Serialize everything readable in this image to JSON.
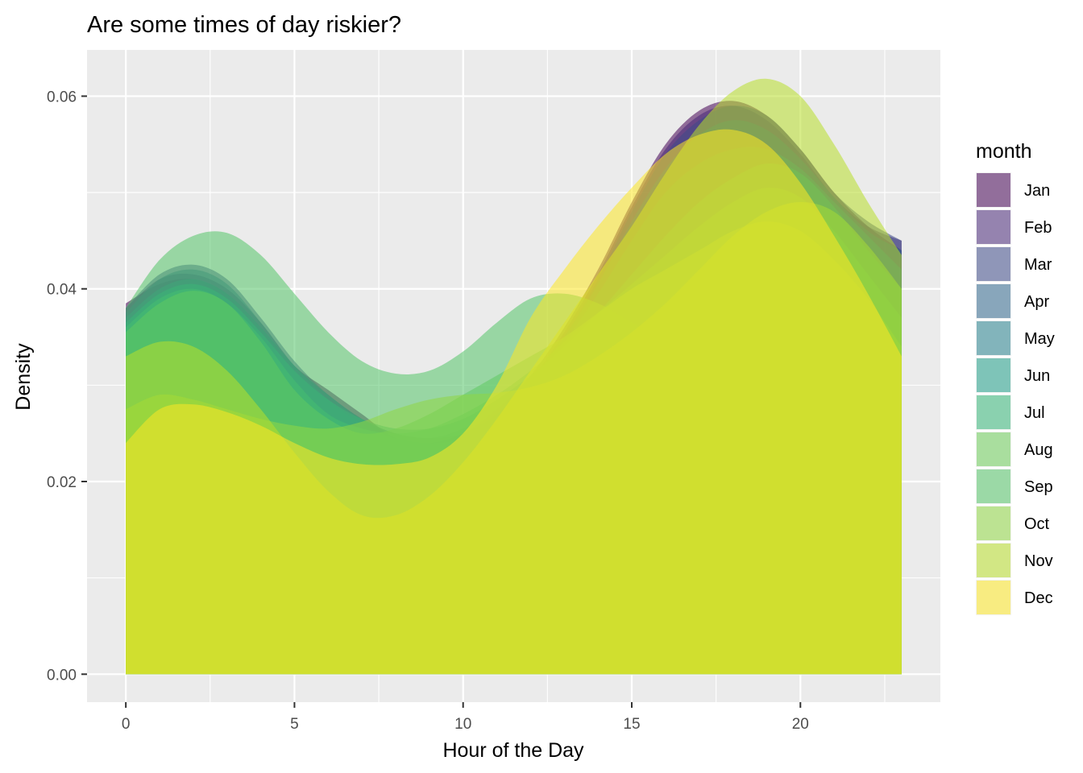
{
  "chart_data": {
    "type": "area",
    "title": "Are some times of day riskier?",
    "xlabel": "Hour of the Day",
    "ylabel": "Density",
    "xlim": [
      -1.15,
      24.15
    ],
    "ylim": [
      -0.0029,
      0.0648
    ],
    "x_ticks": [
      0,
      5,
      10,
      15,
      20
    ],
    "y_ticks": [
      0.0,
      0.02,
      0.04,
      0.06
    ],
    "x_tick_labels": [
      "0",
      "5",
      "10",
      "15",
      "20"
    ],
    "y_tick_labels": [
      "0.00",
      "0.02",
      "0.04",
      "0.06"
    ],
    "grid": true,
    "legend_title": "month",
    "legend_position": "right",
    "x": [
      0,
      1,
      2,
      3,
      4,
      5,
      6,
      7,
      8,
      9,
      10,
      11,
      12,
      13,
      14,
      15,
      16,
      17,
      18,
      19,
      20,
      21,
      22,
      23
    ],
    "series": [
      {
        "name": "Jan",
        "color": "#440154",
        "values": [
          0.0385,
          0.0405,
          0.041,
          0.0395,
          0.036,
          0.032,
          0.0295,
          0.027,
          0.0245,
          0.024,
          0.025,
          0.0275,
          0.031,
          0.036,
          0.042,
          0.049,
          0.055,
          0.0585,
          0.0595,
          0.058,
          0.0545,
          0.05,
          0.0465,
          0.044
        ]
      },
      {
        "name": "Feb",
        "color": "#482878",
        "values": [
          0.038,
          0.041,
          0.0415,
          0.04,
          0.0365,
          0.032,
          0.029,
          0.0265,
          0.025,
          0.0245,
          0.025,
          0.027,
          0.0305,
          0.0355,
          0.0415,
          0.0485,
          0.0545,
          0.058,
          0.059,
          0.0575,
          0.054,
          0.0495,
          0.0465,
          0.045
        ]
      },
      {
        "name": "Mar",
        "color": "#3E4A89",
        "values": [
          0.038,
          0.0415,
          0.0425,
          0.041,
          0.037,
          0.0325,
          0.029,
          0.0265,
          0.0245,
          0.024,
          0.0245,
          0.0265,
          0.03,
          0.035,
          0.041,
          0.048,
          0.054,
          0.0575,
          0.059,
          0.058,
          0.0545,
          0.05,
          0.047,
          0.045
        ]
      },
      {
        "name": "Apr",
        "color": "#31688E",
        "values": [
          0.0375,
          0.041,
          0.042,
          0.0405,
          0.0365,
          0.032,
          0.0285,
          0.026,
          0.0245,
          0.024,
          0.025,
          0.027,
          0.0305,
          0.035,
          0.0405,
          0.047,
          0.0525,
          0.056,
          0.0575,
          0.0565,
          0.0535,
          0.0495,
          0.046,
          0.044
        ]
      },
      {
        "name": "May",
        "color": "#26828E",
        "values": [
          0.037,
          0.04,
          0.041,
          0.0395,
          0.036,
          0.032,
          0.029,
          0.0265,
          0.025,
          0.0245,
          0.0255,
          0.0275,
          0.0305,
          0.0345,
          0.0395,
          0.045,
          0.05,
          0.053,
          0.0545,
          0.0545,
          0.0525,
          0.049,
          0.0455,
          0.042
        ]
      },
      {
        "name": "Jun",
        "color": "#1F9E89",
        "values": [
          0.0365,
          0.0395,
          0.0405,
          0.039,
          0.0355,
          0.0315,
          0.0285,
          0.0265,
          0.0255,
          0.0255,
          0.0265,
          0.0285,
          0.031,
          0.034,
          0.0375,
          0.0415,
          0.0455,
          0.049,
          0.0515,
          0.053,
          0.052,
          0.0485,
          0.044,
          0.04
        ]
      },
      {
        "name": "Jul",
        "color": "#35B779",
        "values": [
          0.036,
          0.039,
          0.04,
          0.0385,
          0.035,
          0.0305,
          0.027,
          0.0255,
          0.025,
          0.0255,
          0.027,
          0.029,
          0.0315,
          0.0345,
          0.0375,
          0.0405,
          0.0435,
          0.0465,
          0.049,
          0.0505,
          0.0495,
          0.046,
          0.0415,
          0.037
        ]
      },
      {
        "name": "Aug",
        "color": "#6DCD59",
        "values": [
          0.0355,
          0.0385,
          0.0398,
          0.0385,
          0.0345,
          0.0295,
          0.0265,
          0.025,
          0.0255,
          0.027,
          0.029,
          0.031,
          0.033,
          0.035,
          0.0375,
          0.04,
          0.042,
          0.044,
          0.046,
          0.047,
          0.046,
          0.043,
          0.039,
          0.034
        ]
      },
      {
        "name": "Sep",
        "color": "#54C568",
        "values": [
          0.038,
          0.043,
          0.0455,
          0.0458,
          0.0435,
          0.0395,
          0.0355,
          0.0325,
          0.0312,
          0.0315,
          0.0335,
          0.0365,
          0.039,
          0.0395,
          0.0385,
          0.0365,
          0.0345,
          0.033,
          0.0325,
          0.0325,
          0.032,
          0.0305,
          0.028,
          0.025
        ]
      },
      {
        "name": "Oct",
        "color": "#8FD744",
        "values": [
          0.0275,
          0.029,
          0.0285,
          0.0275,
          0.0265,
          0.0258,
          0.0255,
          0.0262,
          0.0275,
          0.0285,
          0.029,
          0.0292,
          0.0298,
          0.031,
          0.033,
          0.0355,
          0.0385,
          0.042,
          0.0455,
          0.048,
          0.049,
          0.048,
          0.0445,
          0.04
        ]
      },
      {
        "name": "Nov",
        "color": "#B8DE29",
        "values": [
          0.033,
          0.0345,
          0.034,
          0.0315,
          0.0275,
          0.023,
          0.019,
          0.0165,
          0.0165,
          0.0185,
          0.022,
          0.0265,
          0.0315,
          0.0365,
          0.0415,
          0.0465,
          0.052,
          0.057,
          0.0605,
          0.0618,
          0.06,
          0.055,
          0.049,
          0.0435
        ]
      },
      {
        "name": "Dec",
        "color": "#FDE725",
        "values": [
          0.024,
          0.0275,
          0.028,
          0.0272,
          0.0258,
          0.024,
          0.0225,
          0.0218,
          0.0218,
          0.0225,
          0.025,
          0.03,
          0.037,
          0.042,
          0.0465,
          0.0505,
          0.054,
          0.056,
          0.0565,
          0.055,
          0.051,
          0.0455,
          0.0395,
          0.033
        ]
      }
    ],
    "fill_opacity": 0.55
  }
}
